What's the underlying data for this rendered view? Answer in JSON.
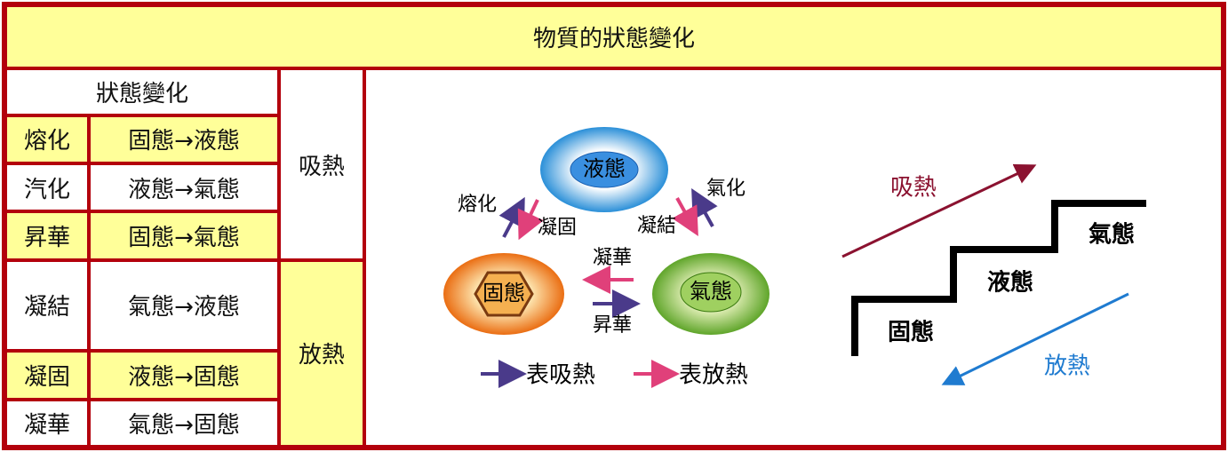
{
  "title": "物質的狀態變化",
  "table": {
    "header": "狀態變化",
    "rows": [
      [
        "熔化",
        "固態→液態"
      ],
      [
        "汽化",
        "液態→氣態"
      ],
      [
        "昇華",
        "固態→氣態"
      ],
      [
        "凝結",
        "氣態→液態"
      ],
      [
        "凝固",
        "液態→固態"
      ],
      [
        "凝華",
        "氣態→固態"
      ]
    ],
    "groups": [
      "吸熱",
      "放熱"
    ]
  },
  "diagram": {
    "states": [
      "液態",
      "固態",
      "氣態"
    ],
    "transitions": [
      "熔化",
      "凝固",
      "氣化",
      "凝結",
      "凝華",
      "昇華"
    ],
    "legend": [
      "表吸熱",
      "表放熱"
    ],
    "stairs": {
      "absorb": "吸熱",
      "release": "放熱",
      "levels": [
        "固態",
        "液態",
        "氣態"
      ]
    }
  }
}
